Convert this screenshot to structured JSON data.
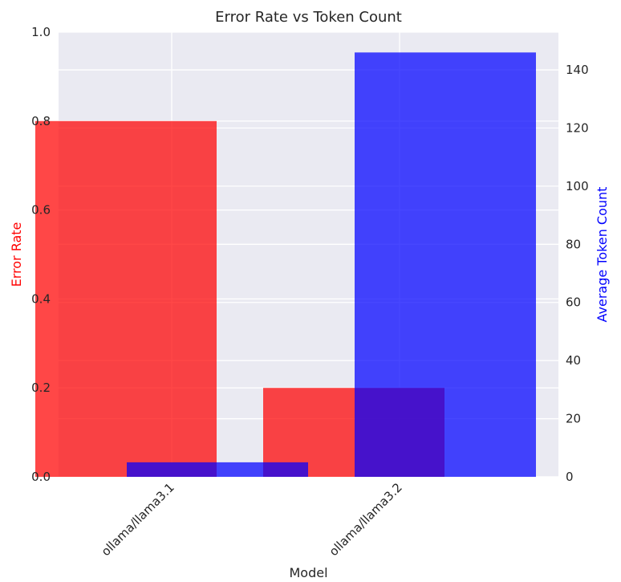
{
  "chart_data": {
    "type": "bar",
    "title": "Error Rate vs Token Count",
    "xlabel": "Model",
    "categories": [
      "ollama/llama3.1",
      "ollama/llama3.2"
    ],
    "y_left": {
      "label": "Error Rate",
      "range": [
        0,
        1.0
      ],
      "ticks": [
        "0.0",
        "0.2",
        "0.4",
        "0.6",
        "0.8",
        "1.0"
      ],
      "color": "#ff0000"
    },
    "y_right": {
      "label": "Average Token Count",
      "range": [
        0,
        153
      ],
      "ticks": [
        "0",
        "20",
        "40",
        "60",
        "80",
        "100",
        "120",
        "140"
      ],
      "color": "#0000ff"
    },
    "series": [
      {
        "axis": "left",
        "values": [
          0.8,
          0.2
        ],
        "color": "#ff0000",
        "opacity": 0.72
      },
      {
        "axis": "right",
        "values": [
          5,
          146
        ],
        "color": "#0000ff",
        "opacity": 0.72
      }
    ],
    "grid": true
  }
}
